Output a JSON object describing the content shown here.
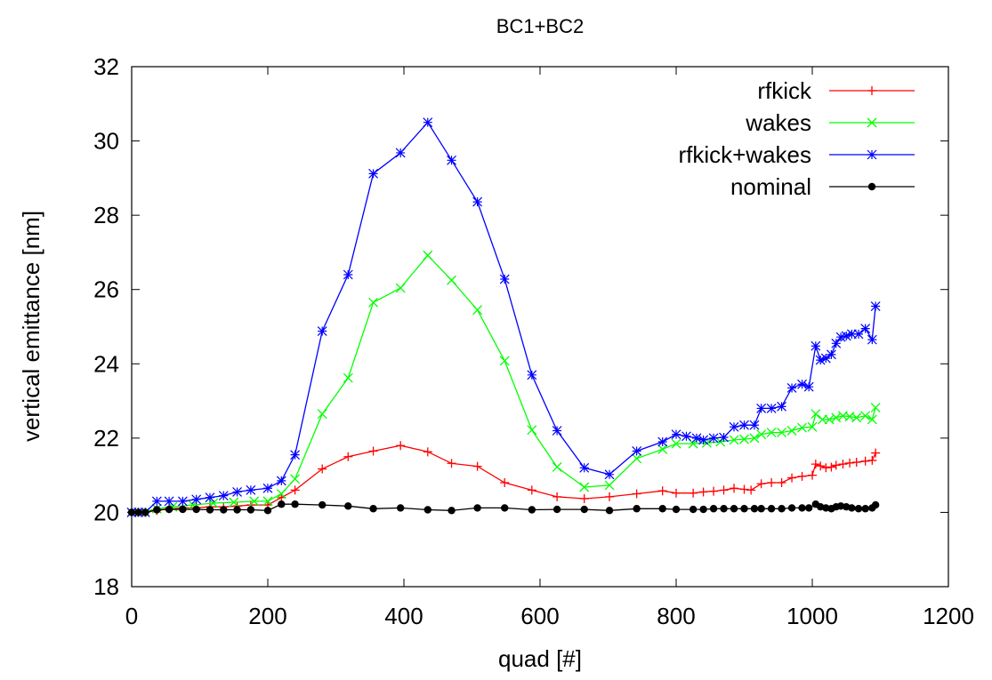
{
  "chart_data": {
    "type": "line",
    "title": "BC1+BC2",
    "xlabel": "quad [#]",
    "ylabel": "vertical emittance [nm]",
    "xlim": [
      0,
      1200
    ],
    "ylim": [
      18,
      32
    ],
    "xticks": [
      0,
      200,
      400,
      600,
      800,
      1000,
      1200
    ],
    "yticks": [
      18,
      20,
      22,
      24,
      26,
      28,
      30,
      32
    ],
    "legend_position": "top-right",
    "grid": false,
    "series": [
      {
        "name": "rfkick",
        "color": "#ff0000",
        "marker": "plus",
        "points": [
          [
            0,
            20.0
          ],
          [
            10,
            20.0
          ],
          [
            20,
            20.0
          ],
          [
            37,
            20.05
          ],
          [
            55,
            20.1
          ],
          [
            75,
            20.12
          ],
          [
            95,
            20.12
          ],
          [
            115,
            20.15
          ],
          [
            135,
            20.15
          ],
          [
            155,
            20.17
          ],
          [
            175,
            20.2
          ],
          [
            200,
            20.2
          ],
          [
            220,
            20.4
          ],
          [
            240,
            20.6
          ],
          [
            280,
            21.17
          ],
          [
            318,
            21.5
          ],
          [
            355,
            21.65
          ],
          [
            395,
            21.8
          ],
          [
            435,
            21.63
          ],
          [
            470,
            21.32
          ],
          [
            508,
            21.24
          ],
          [
            548,
            20.8
          ],
          [
            588,
            20.6
          ],
          [
            625,
            20.42
          ],
          [
            665,
            20.37
          ],
          [
            702,
            20.42
          ],
          [
            742,
            20.5
          ],
          [
            780,
            20.58
          ],
          [
            800,
            20.52
          ],
          [
            825,
            20.52
          ],
          [
            840,
            20.55
          ],
          [
            855,
            20.57
          ],
          [
            870,
            20.6
          ],
          [
            885,
            20.65
          ],
          [
            900,
            20.62
          ],
          [
            910,
            20.6
          ],
          [
            925,
            20.77
          ],
          [
            940,
            20.8
          ],
          [
            955,
            20.8
          ],
          [
            970,
            20.93
          ],
          [
            985,
            20.97
          ],
          [
            1000,
            21.0
          ],
          [
            1005,
            21.3
          ],
          [
            1012,
            21.25
          ],
          [
            1020,
            21.2
          ],
          [
            1028,
            21.22
          ],
          [
            1035,
            21.27
          ],
          [
            1045,
            21.3
          ],
          [
            1055,
            21.33
          ],
          [
            1065,
            21.35
          ],
          [
            1078,
            21.38
          ],
          [
            1088,
            21.4
          ],
          [
            1093,
            21.6
          ]
        ]
      },
      {
        "name": "wakes",
        "color": "#00ff00",
        "marker": "x",
        "points": [
          [
            0,
            20.0
          ],
          [
            15,
            20.0
          ],
          [
            37,
            20.1
          ],
          [
            60,
            20.15
          ],
          [
            90,
            20.2
          ],
          [
            120,
            20.25
          ],
          [
            150,
            20.27
          ],
          [
            180,
            20.3
          ],
          [
            200,
            20.3
          ],
          [
            220,
            20.5
          ],
          [
            240,
            20.9
          ],
          [
            280,
            22.65
          ],
          [
            318,
            23.62
          ],
          [
            355,
            25.65
          ],
          [
            395,
            26.04
          ],
          [
            435,
            26.92
          ],
          [
            470,
            26.25
          ],
          [
            508,
            25.45
          ],
          [
            548,
            24.08
          ],
          [
            588,
            22.22
          ],
          [
            625,
            21.22
          ],
          [
            665,
            20.68
          ],
          [
            702,
            20.73
          ],
          [
            742,
            21.45
          ],
          [
            780,
            21.7
          ],
          [
            800,
            21.85
          ],
          [
            825,
            21.85
          ],
          [
            845,
            21.87
          ],
          [
            865,
            21.9
          ],
          [
            885,
            21.95
          ],
          [
            900,
            21.97
          ],
          [
            915,
            22.0
          ],
          [
            925,
            22.1
          ],
          [
            940,
            22.15
          ],
          [
            955,
            22.15
          ],
          [
            970,
            22.2
          ],
          [
            985,
            22.28
          ],
          [
            1000,
            22.3
          ],
          [
            1005,
            22.65
          ],
          [
            1015,
            22.5
          ],
          [
            1025,
            22.5
          ],
          [
            1035,
            22.55
          ],
          [
            1045,
            22.6
          ],
          [
            1055,
            22.58
          ],
          [
            1065,
            22.55
          ],
          [
            1078,
            22.6
          ],
          [
            1088,
            22.5
          ],
          [
            1093,
            22.82
          ]
        ]
      },
      {
        "name": "rfkick+wakes",
        "color": "#0000ff",
        "marker": "star",
        "points": [
          [
            0,
            20.0
          ],
          [
            10,
            20.0
          ],
          [
            20,
            20.0
          ],
          [
            37,
            20.3
          ],
          [
            55,
            20.3
          ],
          [
            75,
            20.3
          ],
          [
            95,
            20.35
          ],
          [
            115,
            20.4
          ],
          [
            135,
            20.45
          ],
          [
            155,
            20.55
          ],
          [
            175,
            20.6
          ],
          [
            200,
            20.65
          ],
          [
            220,
            20.85
          ],
          [
            240,
            21.55
          ],
          [
            280,
            24.88
          ],
          [
            318,
            26.4
          ],
          [
            355,
            29.12
          ],
          [
            395,
            29.68
          ],
          [
            435,
            30.5
          ],
          [
            470,
            29.48
          ],
          [
            508,
            28.36
          ],
          [
            548,
            26.28
          ],
          [
            588,
            23.7
          ],
          [
            625,
            22.2
          ],
          [
            665,
            21.2
          ],
          [
            702,
            21.02
          ],
          [
            742,
            21.65
          ],
          [
            780,
            21.9
          ],
          [
            800,
            22.1
          ],
          [
            815,
            22.05
          ],
          [
            830,
            22.0
          ],
          [
            840,
            21.95
          ],
          [
            855,
            22.0
          ],
          [
            870,
            22.02
          ],
          [
            885,
            22.3
          ],
          [
            900,
            22.35
          ],
          [
            915,
            22.35
          ],
          [
            925,
            22.8
          ],
          [
            940,
            22.8
          ],
          [
            955,
            22.85
          ],
          [
            970,
            23.35
          ],
          [
            985,
            23.45
          ],
          [
            995,
            23.38
          ],
          [
            1005,
            24.48
          ],
          [
            1012,
            24.1
          ],
          [
            1020,
            24.15
          ],
          [
            1028,
            24.25
          ],
          [
            1035,
            24.55
          ],
          [
            1042,
            24.72
          ],
          [
            1050,
            24.75
          ],
          [
            1058,
            24.8
          ],
          [
            1068,
            24.8
          ],
          [
            1078,
            24.95
          ],
          [
            1088,
            24.65
          ],
          [
            1093,
            25.55
          ]
        ]
      },
      {
        "name": "nominal",
        "color": "#000000",
        "marker": "dot",
        "points": [
          [
            0,
            20.0
          ],
          [
            10,
            20.0
          ],
          [
            20,
            20.0
          ],
          [
            37,
            20.07
          ],
          [
            55,
            20.08
          ],
          [
            75,
            20.08
          ],
          [
            95,
            20.08
          ],
          [
            115,
            20.07
          ],
          [
            135,
            20.07
          ],
          [
            155,
            20.07
          ],
          [
            175,
            20.07
          ],
          [
            200,
            20.05
          ],
          [
            220,
            20.22
          ],
          [
            240,
            20.22
          ],
          [
            280,
            20.2
          ],
          [
            318,
            20.17
          ],
          [
            355,
            20.1
          ],
          [
            395,
            20.12
          ],
          [
            435,
            20.07
          ],
          [
            470,
            20.05
          ],
          [
            508,
            20.12
          ],
          [
            548,
            20.12
          ],
          [
            588,
            20.07
          ],
          [
            625,
            20.08
          ],
          [
            665,
            20.08
          ],
          [
            702,
            20.05
          ],
          [
            742,
            20.1
          ],
          [
            780,
            20.1
          ],
          [
            800,
            20.08
          ],
          [
            825,
            20.08
          ],
          [
            840,
            20.08
          ],
          [
            855,
            20.1
          ],
          [
            870,
            20.1
          ],
          [
            885,
            20.1
          ],
          [
            900,
            20.1
          ],
          [
            915,
            20.1
          ],
          [
            925,
            20.1
          ],
          [
            940,
            20.1
          ],
          [
            955,
            20.1
          ],
          [
            970,
            20.12
          ],
          [
            985,
            20.12
          ],
          [
            995,
            20.12
          ],
          [
            1005,
            20.22
          ],
          [
            1012,
            20.15
          ],
          [
            1020,
            20.12
          ],
          [
            1028,
            20.1
          ],
          [
            1035,
            20.15
          ],
          [
            1042,
            20.17
          ],
          [
            1050,
            20.15
          ],
          [
            1058,
            20.12
          ],
          [
            1068,
            20.1
          ],
          [
            1078,
            20.1
          ],
          [
            1088,
            20.12
          ],
          [
            1093,
            20.2
          ]
        ]
      }
    ]
  }
}
